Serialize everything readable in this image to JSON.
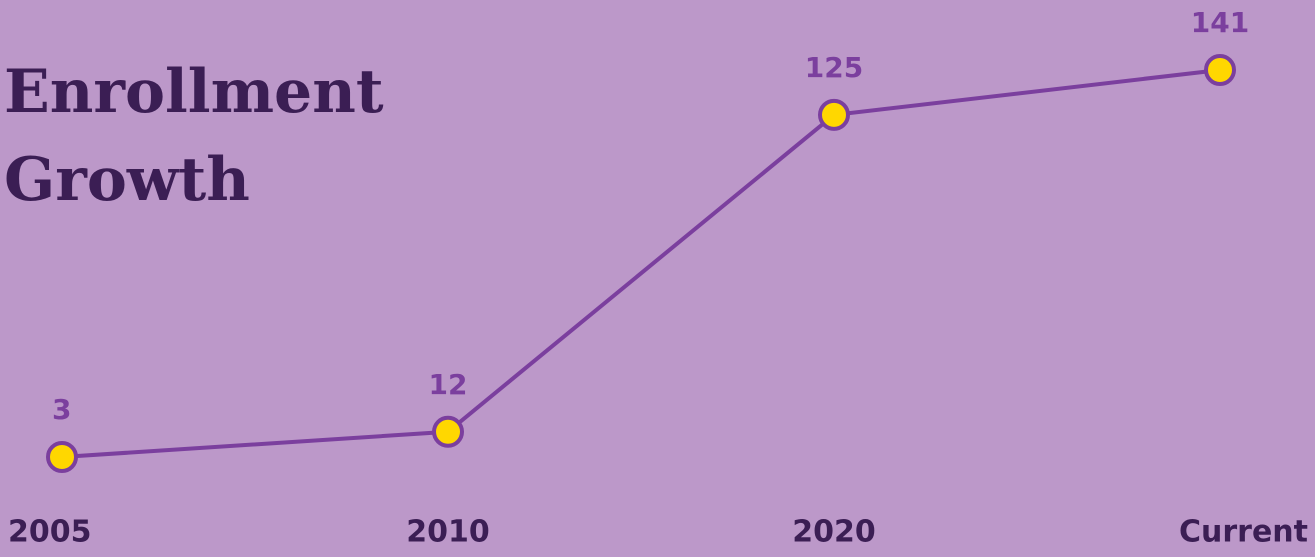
{
  "chart_data": {
    "type": "line",
    "title": "Enrollment Growth",
    "categories": [
      "2005",
      "2010",
      "2020",
      "Current"
    ],
    "series": [
      {
        "name": null,
        "color": "#7b3f9e",
        "values": [
          3,
          12,
          125,
          141
        ]
      }
    ],
    "marker_color": "#ffd700",
    "grid": false
  }
}
